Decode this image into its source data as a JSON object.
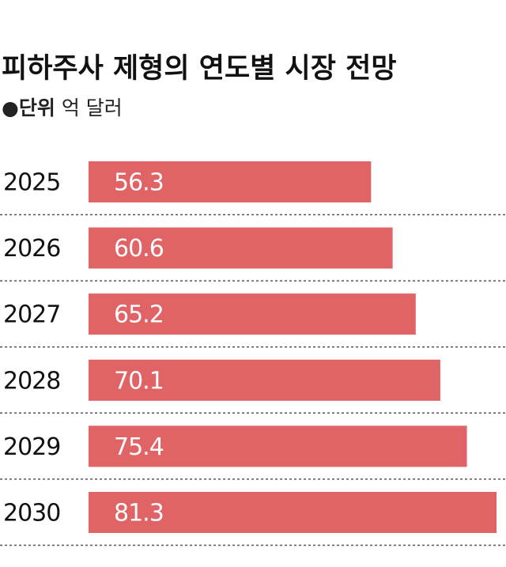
{
  "chart_data": {
    "type": "bar",
    "orientation": "horizontal",
    "title": "피하주사 제형의 연도별 시장 전망",
    "subtitle_label": "●단위",
    "subtitle": "억 달러",
    "categories": [
      "2025",
      "2026",
      "2027",
      "2028",
      "2029",
      "2030"
    ],
    "values": [
      56.3,
      60.6,
      65.2,
      70.1,
      75.4,
      81.3
    ],
    "color": "#e06366",
    "xlim": [
      0,
      81.3
    ]
  }
}
